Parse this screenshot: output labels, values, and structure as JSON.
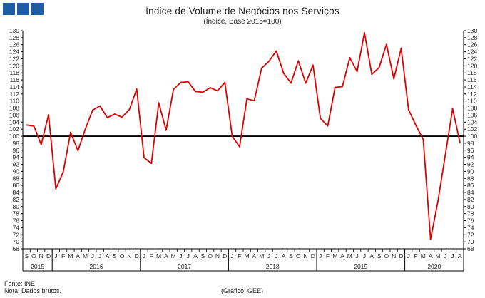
{
  "header": {
    "title": "Índice de Volume de Negócios nos Serviços",
    "subtitle": "(Índice, Base 2015=100)"
  },
  "footer": {
    "source": "Fonte: INE",
    "note": "Nota: Dados brutos.",
    "credit": "(Gráfico: GEE)"
  },
  "colors": {
    "series": "#dd0000",
    "reference_line": "#000000",
    "logo": "#1f5ca3"
  },
  "chart_data": {
    "type": "line",
    "ylim": [
      68,
      130
    ],
    "ytick_step": 2,
    "right_axis": true,
    "grid": false,
    "reference_line": 100,
    "x": [
      "2015-09",
      "2015-10",
      "2015-11",
      "2015-12",
      "2016-01",
      "2016-02",
      "2016-03",
      "2016-04",
      "2016-05",
      "2016-06",
      "2016-07",
      "2016-08",
      "2016-09",
      "2016-10",
      "2016-11",
      "2016-12",
      "2017-01",
      "2017-02",
      "2017-03",
      "2017-04",
      "2017-05",
      "2017-06",
      "2017-07",
      "2017-08",
      "2017-09",
      "2017-10",
      "2017-11",
      "2017-12",
      "2018-01",
      "2018-02",
      "2018-03",
      "2018-04",
      "2018-05",
      "2018-06",
      "2018-07",
      "2018-08",
      "2018-09",
      "2018-10",
      "2018-11",
      "2018-12",
      "2019-01",
      "2019-02",
      "2019-03",
      "2019-04",
      "2019-05",
      "2019-06",
      "2019-07",
      "2019-08",
      "2019-09",
      "2019-10",
      "2019-11",
      "2019-12",
      "2020-01",
      "2020-02",
      "2020-03",
      "2020-04",
      "2020-05",
      "2020-06",
      "2020-07",
      "2020-08"
    ],
    "month_labels": [
      "S",
      "O",
      "N",
      "D",
      "J",
      "F",
      "M",
      "A",
      "M",
      "J",
      "J",
      "A",
      "S",
      "O",
      "N",
      "D",
      "J",
      "F",
      "M",
      "A",
      "M",
      "J",
      "J",
      "A",
      "S",
      "O",
      "N",
      "D",
      "J",
      "F",
      "M",
      "A",
      "M",
      "J",
      "J",
      "A",
      "S",
      "O",
      "N",
      "D",
      "J",
      "F",
      "M",
      "A",
      "M",
      "J",
      "J",
      "A",
      "S",
      "O",
      "N",
      "D",
      "J",
      "F",
      "M",
      "A",
      "M",
      "J",
      "J",
      "A"
    ],
    "years": [
      {
        "label": "2015",
        "start": 0,
        "count": 4
      },
      {
        "label": "2016",
        "start": 4,
        "count": 12
      },
      {
        "label": "2017",
        "start": 16,
        "count": 12
      },
      {
        "label": "2018",
        "start": 28,
        "count": 12
      },
      {
        "label": "2019",
        "start": 40,
        "count": 12
      },
      {
        "label": "2020",
        "start": 52,
        "count": 8
      }
    ],
    "series": [
      {
        "values": [
          103.2,
          102.9,
          97.6,
          106.1,
          85.0,
          89.9,
          101.1,
          95.9,
          102.0,
          107.4,
          108.6,
          105.3,
          106.3,
          105.4,
          107.6,
          113.4,
          93.9,
          92.3,
          109.5,
          101.7,
          113.3,
          115.3,
          115.5,
          112.7,
          112.5,
          113.8,
          112.9,
          115.3,
          100.0,
          97.0,
          110.6,
          110.1,
          119.3,
          121.3,
          124.2,
          117.9,
          115.1,
          121.4,
          115.1,
          120.2,
          105.1,
          102.9,
          113.9,
          114.1,
          122.3,
          118.4,
          129.4,
          117.6,
          119.5,
          126.1,
          116.3,
          125.0,
          107.6,
          103.1,
          99.1,
          70.7,
          81.5,
          94.6,
          107.8,
          98.2
        ]
      }
    ]
  }
}
